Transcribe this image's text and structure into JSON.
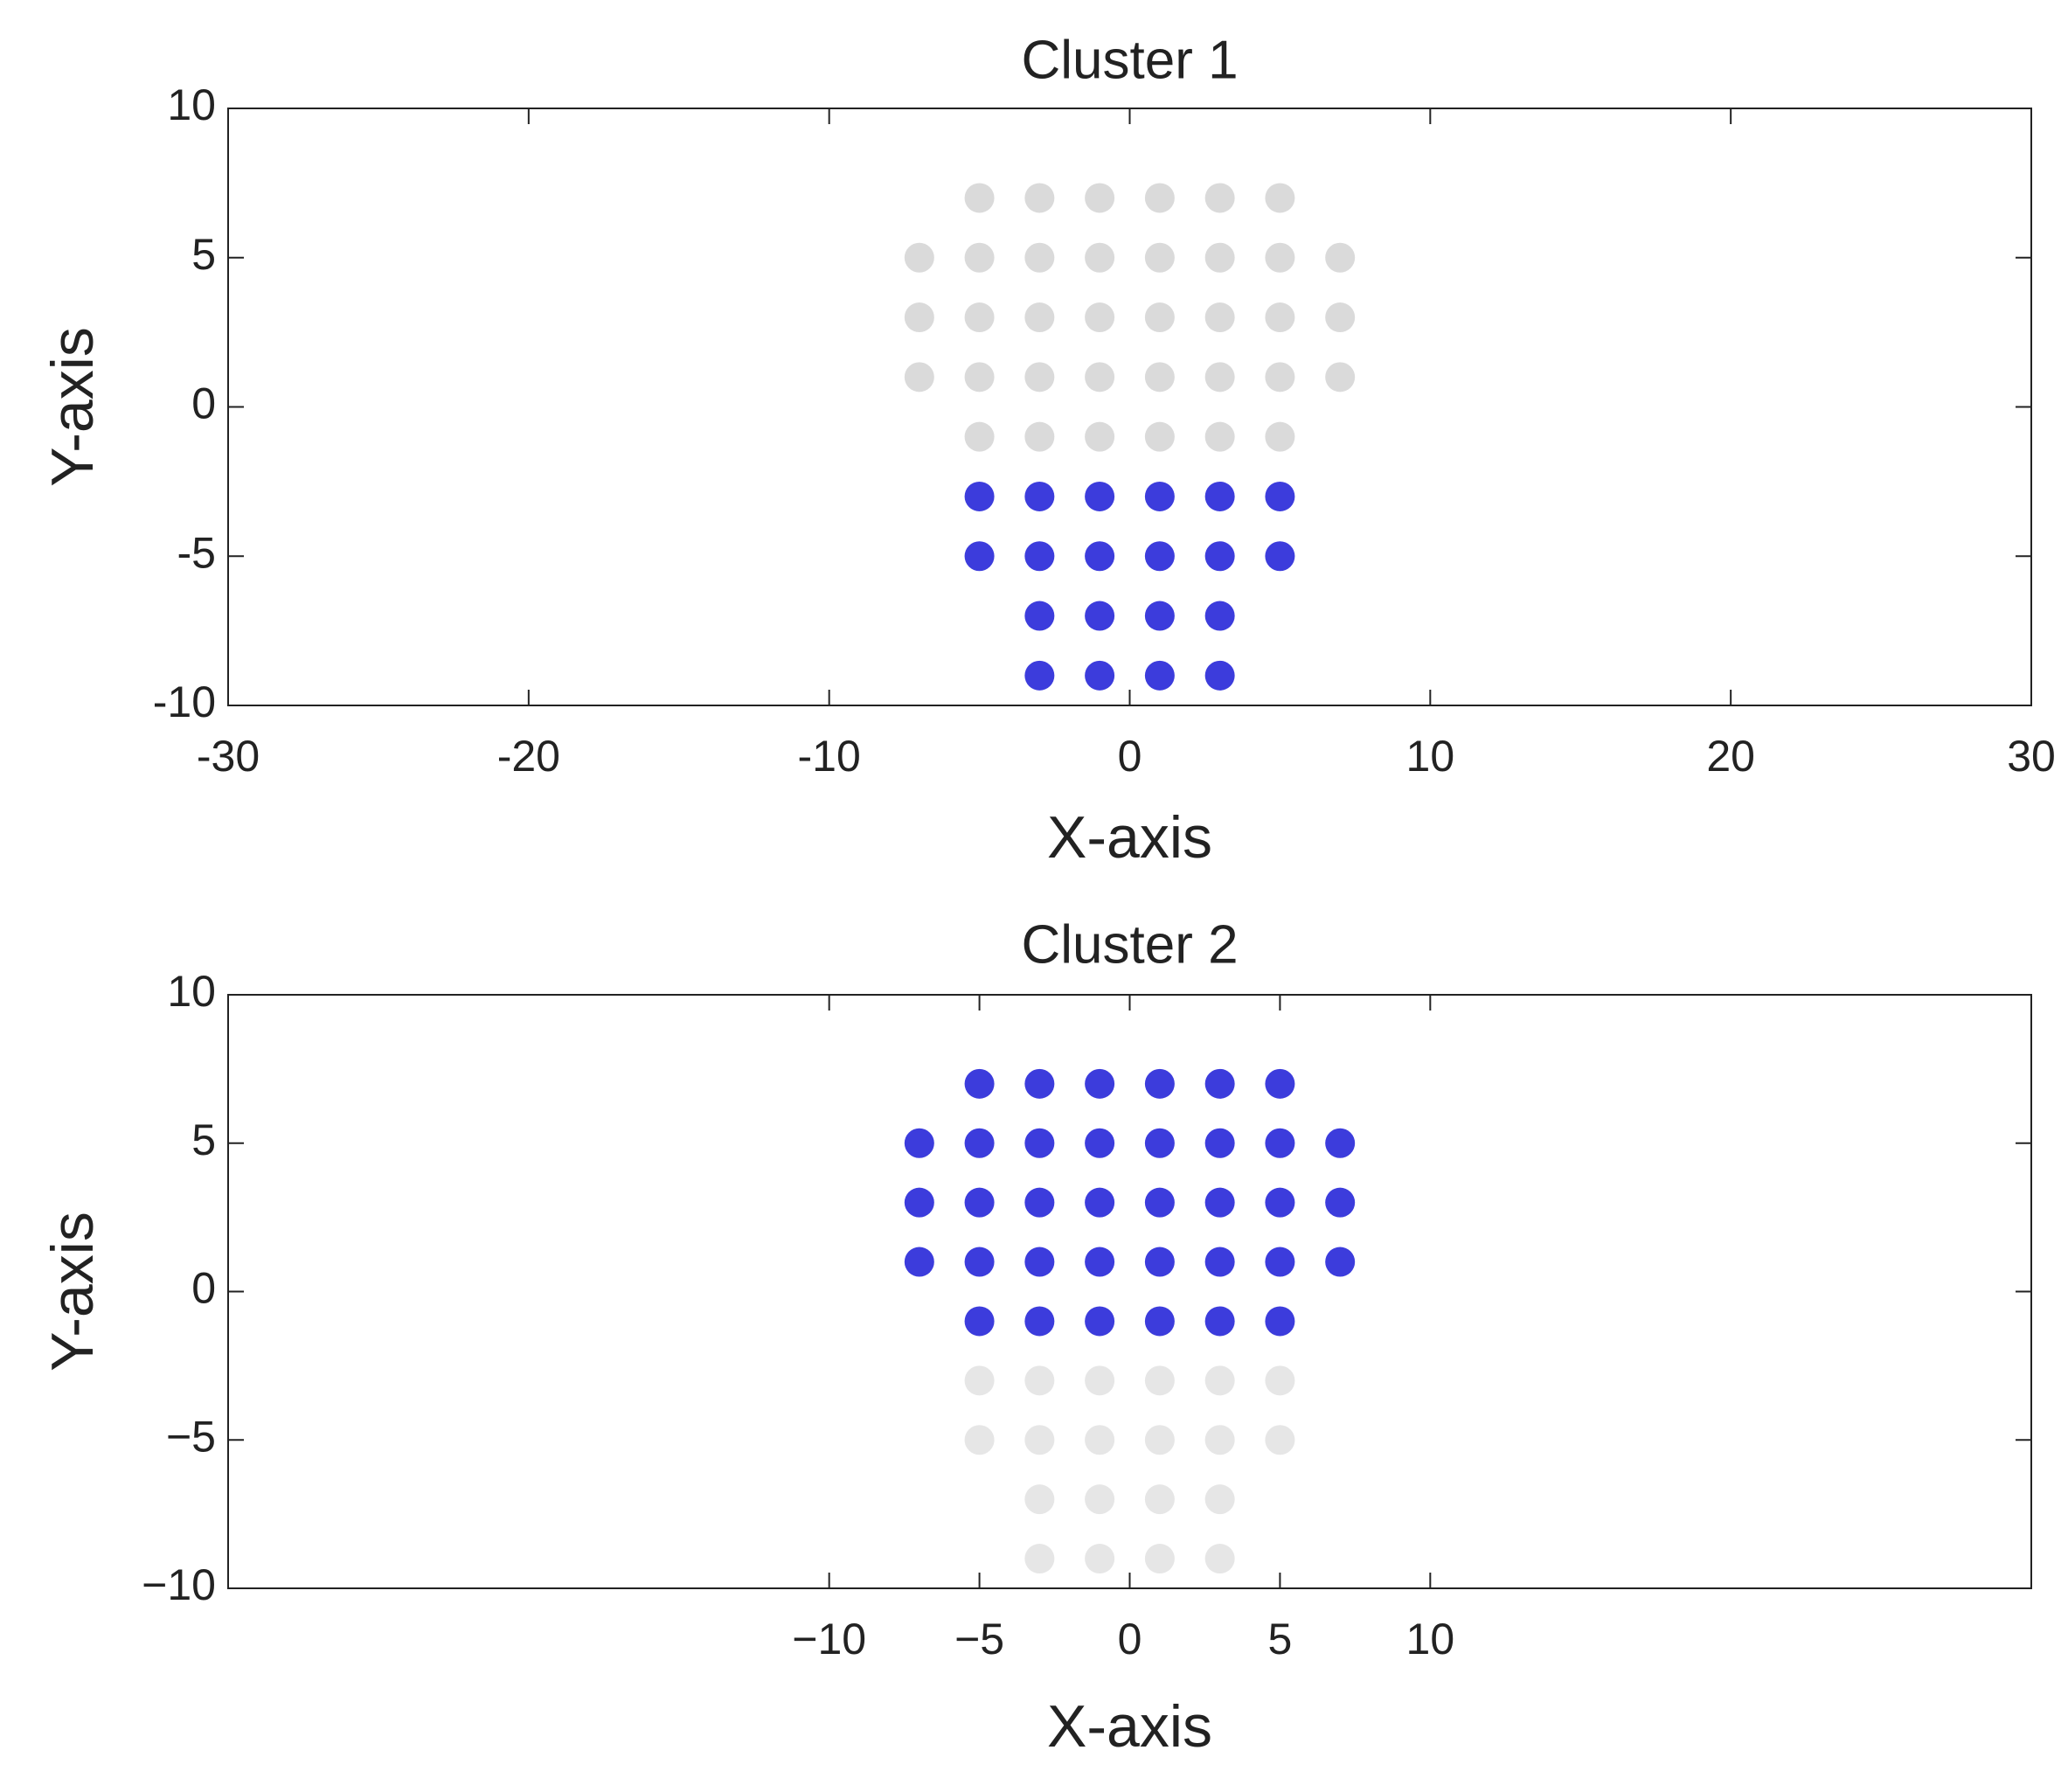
{
  "chart_data": [
    {
      "type": "scatter",
      "title": "Cluster 1",
      "x_label": "X-axis",
      "y_label": "Y-axis",
      "xlim": [
        -30,
        30
      ],
      "xticks": [
        -30,
        -20,
        -10,
        0,
        10,
        20,
        30
      ],
      "ylim": [
        -10,
        10
      ],
      "yticks": [
        -10,
        -5,
        0,
        5,
        10
      ],
      "series": [
        {
          "color": "#d3d3d3",
          "x": [
            -5,
            -3,
            -1,
            1,
            3,
            5,
            -7,
            -5,
            -3,
            -1,
            1,
            3,
            5,
            7,
            -7,
            -5,
            -3,
            -1,
            1,
            3,
            5,
            7,
            -7,
            -5,
            -3,
            -1,
            1,
            3,
            5,
            7,
            -5,
            -3,
            -1,
            1,
            3,
            5
          ],
          "values": [
            7,
            7,
            7,
            7,
            7,
            7,
            5,
            5,
            5,
            5,
            5,
            5,
            5,
            5,
            3,
            3,
            3,
            3,
            3,
            3,
            3,
            3,
            1,
            1,
            1,
            1,
            1,
            1,
            1,
            1,
            -1,
            -1,
            -1,
            -1,
            -1,
            -1
          ]
        },
        {
          "color": "#1a1ad6",
          "x": [
            -5,
            -3,
            -1,
            1,
            3,
            5,
            -5,
            -3,
            -1,
            1,
            3,
            5,
            -3,
            -1,
            1,
            3,
            -3,
            -1,
            1,
            3
          ],
          "values": [
            -3,
            -3,
            -3,
            -3,
            -3,
            -3,
            -5,
            -5,
            -5,
            -5,
            -5,
            -5,
            -7,
            -7,
            -7,
            -7,
            -9,
            -9,
            -9,
            -9
          ]
        }
      ]
    },
    {
      "type": "scatter",
      "title": "Cluster 2",
      "x_label": "X-axis",
      "y_label": "Y-axis",
      "xlim": [
        -30,
        30
      ],
      "xticks": [
        {
          "value": -10,
          "label": "−10"
        },
        {
          "value": -5,
          "label": "−5"
        },
        0,
        5,
        10
      ],
      "ylim": [
        -10,
        10
      ],
      "yticks": [
        {
          "value": -10,
          "label": "−10"
        },
        {
          "value": -5,
          "label": "−5"
        },
        0,
        5,
        10
      ],
      "series": [
        {
          "color": "#1a1ad6",
          "x": [
            -5,
            -3,
            -1,
            1,
            3,
            5,
            -7,
            -5,
            -3,
            -1,
            1,
            3,
            5,
            7,
            -7,
            -5,
            -3,
            -1,
            1,
            3,
            5,
            7,
            -7,
            -5,
            -3,
            -1,
            1,
            3,
            5,
            7,
            -5,
            -3,
            -1,
            1,
            3,
            5
          ],
          "values": [
            7,
            7,
            7,
            7,
            7,
            7,
            5,
            5,
            5,
            5,
            5,
            5,
            5,
            5,
            3,
            3,
            3,
            3,
            3,
            3,
            3,
            3,
            1,
            1,
            1,
            1,
            1,
            1,
            1,
            1,
            -1,
            -1,
            -1,
            -1,
            -1,
            -1
          ]
        },
        {
          "color": "#e2e2e2",
          "x": [
            -5,
            -3,
            -1,
            1,
            3,
            5,
            -5,
            -3,
            -1,
            1,
            3,
            5,
            -3,
            -1,
            1,
            3,
            -3,
            -1,
            1,
            3
          ],
          "values": [
            -3,
            -3,
            -3,
            -3,
            -3,
            -3,
            -5,
            -5,
            -5,
            -5,
            -5,
            -5,
            -7,
            -7,
            -7,
            -7,
            -9,
            -9,
            -9,
            -9
          ]
        }
      ]
    }
  ]
}
